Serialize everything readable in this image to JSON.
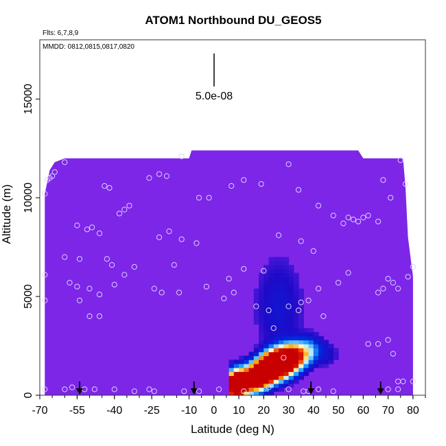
{
  "chart_data": {
    "type": "heatmap",
    "title": "ATOM1 Northbound DU_GEOS5",
    "annotations": {
      "flights": "Flts: 6,7,8,9",
      "dates": "MMDD: 0812,0815,0817,0820",
      "scale_label": "5.0e-08"
    },
    "xlabel": "Latitude (deg N)",
    "ylabel": "Altitude (m)",
    "xlim": [
      -70,
      85
    ],
    "ylim": [
      0,
      18000
    ],
    "x_tick_labels": [
      "-70",
      "-55",
      "-40",
      "-25",
      "-10",
      "0",
      "10",
      "20",
      "30",
      "40",
      "50",
      "60",
      "70",
      "80"
    ],
    "y_tick_labels": [
      "0",
      "5000",
      "10000",
      "15000"
    ],
    "grid": false,
    "colors": {
      "background_field": "#7d26e8",
      "high": "#c80000",
      "marker": "#e0d0ff"
    },
    "curtain_top": [
      [
        -68,
        10200
      ],
      [
        -67,
        10800
      ],
      [
        -66,
        11400
      ],
      [
        -64,
        11800
      ],
      [
        -60,
        12000
      ],
      [
        -10,
        12000
      ],
      [
        -9,
        12400
      ],
      [
        58,
        12400
      ],
      [
        60,
        12000
      ],
      [
        76,
        12000
      ],
      [
        77,
        10500
      ],
      [
        78,
        8000
      ],
      [
        80,
        6000
      ],
      [
        80,
        500
      ]
    ],
    "plume": [
      [
        8,
        500,
        9.0
      ],
      [
        10,
        600,
        6.0
      ],
      [
        12,
        700,
        4.0
      ],
      [
        14,
        800,
        3.0
      ],
      [
        16,
        900,
        5.0
      ],
      [
        18,
        1000,
        6.5
      ],
      [
        20,
        1200,
        7.5
      ],
      [
        22,
        1400,
        8.0
      ],
      [
        24,
        1500,
        7.8
      ],
      [
        26,
        1600,
        7.5
      ],
      [
        28,
        1700,
        7.0
      ],
      [
        30,
        1800,
        6.0
      ],
      [
        32,
        1900,
        4.5
      ],
      [
        34,
        2000,
        3.0
      ],
      [
        36,
        2100,
        2.0
      ],
      [
        38,
        2200,
        1.5
      ],
      [
        40,
        2300,
        1.2
      ],
      [
        44,
        2200,
        0.8
      ],
      [
        48,
        2000,
        0.4
      ]
    ],
    "sample_points": [
      [
        -68,
        10200
      ],
      [
        -67,
        10900
      ],
      [
        -66,
        11000
      ],
      [
        -65,
        11100
      ],
      [
        -64,
        11300
      ],
      [
        -60,
        11800
      ],
      [
        -44,
        10600
      ],
      [
        -42,
        10500
      ],
      [
        -38,
        9200
      ],
      [
        -36,
        9400
      ],
      [
        -34,
        9600
      ],
      [
        -26,
        11000
      ],
      [
        -22,
        11200
      ],
      [
        -19,
        11100
      ],
      [
        -13,
        12100
      ],
      [
        -6,
        10000
      ],
      [
        -2,
        10000
      ],
      [
        7,
        10600
      ],
      [
        12,
        10900
      ],
      [
        19,
        10700
      ],
      [
        30,
        11700
      ],
      [
        34,
        10400
      ],
      [
        42,
        9600
      ],
      [
        48,
        9100
      ],
      [
        52,
        8700
      ],
      [
        54,
        9000
      ],
      [
        56,
        8900
      ],
      [
        58,
        8800
      ],
      [
        60,
        9000
      ],
      [
        62,
        9100
      ],
      [
        66,
        8800
      ],
      [
        68,
        10900
      ],
      [
        71,
        10000
      ],
      [
        75,
        11900
      ],
      [
        77,
        10700
      ],
      [
        78,
        6000
      ],
      [
        80,
        6500
      ],
      [
        -55,
        8600
      ],
      [
        -51,
        8400
      ],
      [
        -49,
        8500
      ],
      [
        -46,
        8200
      ],
      [
        -22,
        8000
      ],
      [
        -18,
        8300
      ],
      [
        -13,
        7900
      ],
      [
        -7,
        7700
      ],
      [
        -68,
        6100
      ],
      [
        -60,
        7000
      ],
      [
        -54,
        6900
      ],
      [
        -43,
        6900
      ],
      [
        -41,
        6600
      ],
      [
        -36,
        6100
      ],
      [
        -32,
        6500
      ],
      [
        -16,
        6600
      ],
      [
        6,
        5900
      ],
      [
        12,
        6400
      ],
      [
        20,
        6300
      ],
      [
        26,
        8100
      ],
      [
        35,
        7800
      ],
      [
        40,
        7300
      ],
      [
        42,
        5400
      ],
      [
        -58,
        5700
      ],
      [
        -55,
        5500
      ],
      [
        -50,
        5400
      ],
      [
        -46,
        5100
      ],
      [
        -40,
        5600
      ],
      [
        -24,
        5400
      ],
      [
        -21,
        5200
      ],
      [
        -14,
        5200
      ],
      [
        -3,
        5500
      ],
      [
        4,
        4900
      ],
      [
        8,
        5200
      ],
      [
        17,
        4500
      ],
      [
        22,
        4300
      ],
      [
        30,
        4500
      ],
      [
        35,
        4700
      ],
      [
        38,
        4800
      ],
      [
        44,
        4000
      ],
      [
        50,
        5700
      ],
      [
        54,
        6200
      ],
      [
        66,
        5200
      ],
      [
        68,
        5400
      ],
      [
        70,
        5900
      ],
      [
        72,
        5700
      ],
      [
        74,
        5400
      ],
      [
        -54,
        4800
      ],
      [
        -50,
        4000
      ],
      [
        -46,
        4000
      ],
      [
        -68,
        4800
      ],
      [
        24,
        3400
      ],
      [
        28,
        1900
      ],
      [
        34,
        4300
      ],
      [
        62,
        2600
      ],
      [
        66,
        2600
      ],
      [
        70,
        2800
      ],
      [
        72,
        2100
      ],
      [
        74,
        700
      ],
      [
        76,
        700
      ],
      [
        -68,
        300
      ],
      [
        -60,
        300
      ],
      [
        -57,
        400
      ],
      [
        -52,
        300
      ],
      [
        -48,
        300
      ],
      [
        -40,
        300
      ],
      [
        -32,
        200
      ],
      [
        -26,
        300
      ],
      [
        -24,
        200
      ],
      [
        -12,
        200
      ],
      [
        -6,
        200
      ],
      [
        2,
        300
      ],
      [
        12,
        200
      ],
      [
        22,
        400
      ],
      [
        30,
        300
      ],
      [
        36,
        200
      ],
      [
        38,
        200
      ],
      [
        42,
        300
      ],
      [
        48,
        200
      ],
      [
        70,
        300
      ],
      [
        74,
        300
      ],
      [
        80,
        700
      ]
    ],
    "arrow_latitudes": [
      -54,
      -8,
      39,
      67
    ]
  }
}
